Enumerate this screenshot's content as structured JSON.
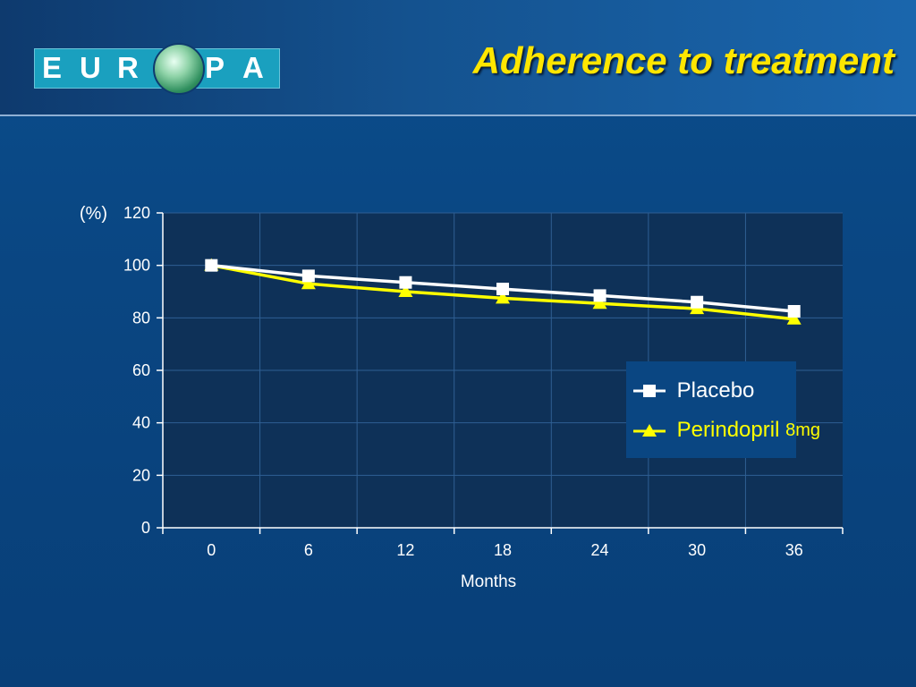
{
  "slide": {
    "title": "Adherence to treatment",
    "logo": {
      "letters_left": [
        "E",
        "U",
        "R"
      ],
      "letters_right": [
        "P",
        "A"
      ],
      "emblem": "globe-heart-icon"
    }
  },
  "colors": {
    "title": "#ffe600",
    "background": "#0a4682",
    "plot_area": "#0e3158",
    "placebo": "#ffffff",
    "perindopril": "#ffff00",
    "axis_text": "#ffffff"
  },
  "chart_data": {
    "type": "line",
    "xlabel": "Months",
    "ylabel": "(%)",
    "x": [
      0,
      6,
      12,
      18,
      24,
      30,
      36
    ],
    "ylim": [
      0,
      120
    ],
    "yticks": [
      0,
      20,
      40,
      60,
      80,
      100,
      120
    ],
    "grid": true,
    "legend_position": "right",
    "series": [
      {
        "name": "Placebo",
        "values": [
          100,
          96,
          93.5,
          91,
          88.5,
          86,
          82.5
        ],
        "color": "#ffffff",
        "marker": "square"
      },
      {
        "name": "Perindopril",
        "unit_label": "8mg",
        "values": [
          100,
          93,
          90,
          87.5,
          85.5,
          83.5,
          79.5
        ],
        "color": "#ffff00",
        "marker": "triangle"
      }
    ]
  }
}
